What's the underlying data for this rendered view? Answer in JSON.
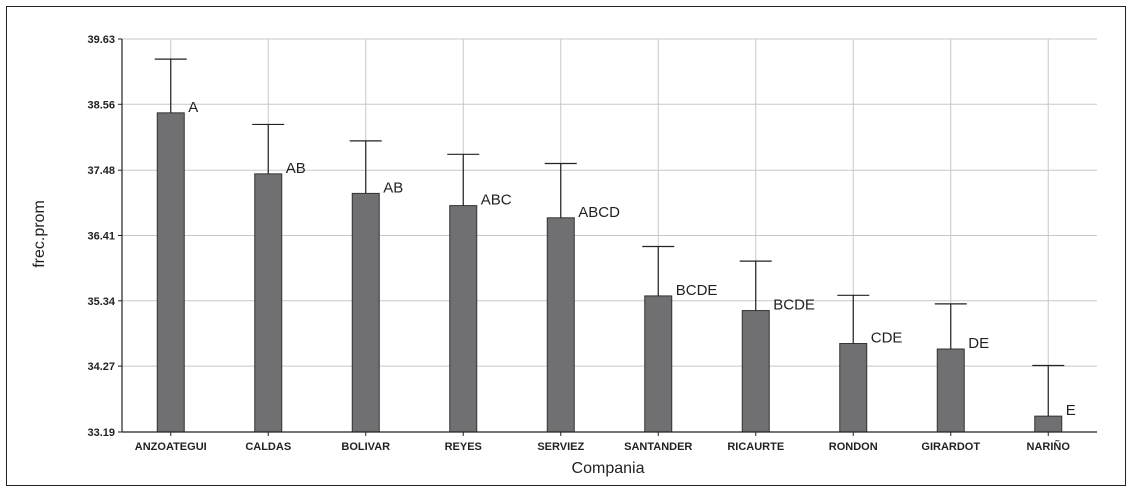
{
  "chart_data": {
    "type": "bar",
    "title": "",
    "xlabel": "Compania",
    "ylabel": "frec.prom",
    "ylim": [
      33.19,
      39.63
    ],
    "yticks": [
      "33.19",
      "34.27",
      "35.34",
      "36.41",
      "37.48",
      "38.56",
      "39.63"
    ],
    "grid": true,
    "categories": [
      "ANZOATEGUI",
      "CALDAS",
      "BOLIVAR",
      "REYES",
      "SERVIEZ",
      "SANTANDER",
      "RICAURTE",
      "RONDON",
      "GIRARDOT",
      "NARIÑO"
    ],
    "values": [
      38.42,
      37.42,
      37.1,
      36.9,
      36.7,
      35.42,
      35.18,
      34.64,
      34.55,
      33.45
    ],
    "error_upper": [
      39.3,
      38.23,
      37.96,
      37.74,
      37.59,
      36.23,
      35.99,
      35.43,
      35.29,
      34.28
    ],
    "groups": [
      "A",
      "AB",
      "AB",
      "ABC",
      "ABCD",
      "BCDE",
      "BCDE",
      "CDE",
      "DE",
      "E"
    ],
    "colors": {
      "bar": "#707073",
      "grid": "#c8c8c8",
      "axis": "#222222"
    }
  }
}
